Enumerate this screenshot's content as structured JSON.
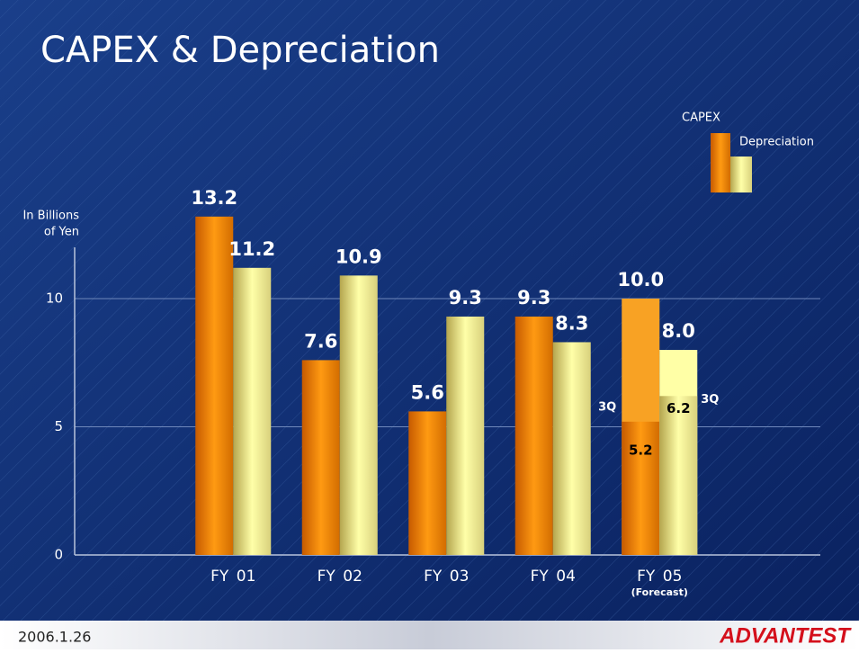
{
  "chart_data": {
    "type": "bar",
    "title": "CAPEX & Depreciation",
    "ylabel": [
      "In Billions",
      "of Yen"
    ],
    "categories": [
      "FY 01",
      "FY 02",
      "FY 03",
      "FY 04",
      "FY 05"
    ],
    "category_notes": [
      null,
      null,
      null,
      null,
      "(Forecast)"
    ],
    "series": [
      {
        "name": "CAPEX",
        "color": "#f28c00",
        "values": [
          13.2,
          7.6,
          5.6,
          9.3,
          10.0
        ],
        "value_labels": [
          "13.2",
          "7.6",
          "5.6",
          "9.3",
          "10.0"
        ],
        "partial_values": [
          null,
          null,
          null,
          null,
          5.2
        ],
        "partial_label": "3Q"
      },
      {
        "name": "Depreciation",
        "color": "#f4f08c",
        "values": [
          11.2,
          10.9,
          9.3,
          8.3,
          8.0
        ],
        "value_labels": [
          "11.2",
          "10.9",
          "9.3",
          "8.3",
          "8.0"
        ],
        "partial_values": [
          null,
          null,
          null,
          null,
          6.2
        ],
        "partial_label": "3Q"
      }
    ],
    "ylim": [
      0,
      12
    ],
    "yticks": [
      0,
      5,
      10
    ],
    "grid": true
  },
  "footer": {
    "date": "2006.1.26",
    "logo": "ADVANTEST"
  }
}
